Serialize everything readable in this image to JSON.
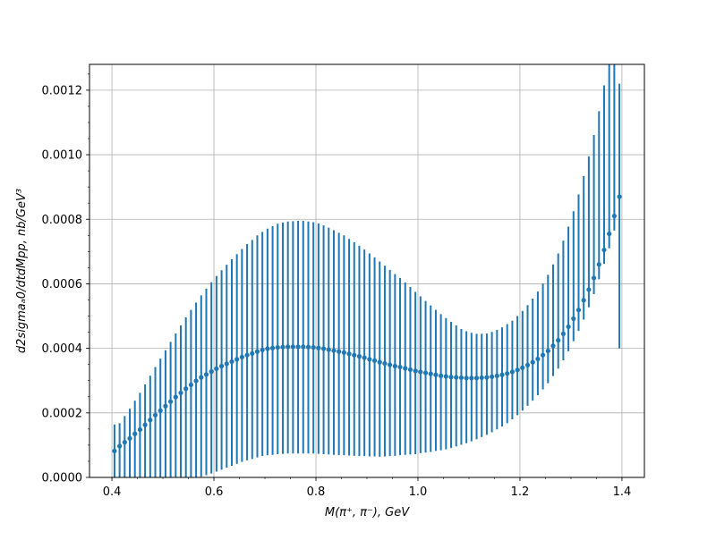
{
  "chart_data": {
    "type": "scatter",
    "title": "",
    "xlabel": "M(π⁺, π⁻), GeV",
    "ylabel": "d2sigmaₐ0/dtdMpp, nb/GeV³",
    "xlim": [
      0.356,
      1.444
    ],
    "ylim": [
      0.0,
      0.00128
    ],
    "xticks": [
      0.4,
      0.6,
      0.8,
      1.0,
      1.2,
      1.4
    ],
    "xtick_labels": [
      "0.4",
      "0.6",
      "0.8",
      "1.0",
      "1.2",
      "1.4"
    ],
    "yticks": [
      0.0,
      0.0002,
      0.0004,
      0.0006,
      0.0008,
      0.001,
      0.0012
    ],
    "ytick_labels": [
      "0.0000",
      "0.0002",
      "0.0004",
      "0.0006",
      "0.0008",
      "0.0010",
      "0.0012"
    ],
    "grid": true,
    "series_color": "#1f77b4",
    "series": [
      {
        "x": [
          0.405,
          0.415,
          0.425,
          0.435,
          0.445,
          0.455,
          0.465,
          0.475,
          0.485,
          0.495,
          0.505,
          0.515,
          0.525,
          0.535,
          0.545,
          0.555,
          0.565,
          0.575,
          0.585,
          0.595,
          0.605,
          0.615,
          0.625,
          0.635,
          0.645,
          0.655,
          0.665,
          0.675,
          0.685,
          0.695,
          0.705,
          0.715,
          0.725,
          0.735,
          0.745,
          0.755,
          0.765,
          0.775,
          0.785,
          0.795,
          0.805,
          0.815,
          0.825,
          0.835,
          0.845,
          0.855,
          0.865,
          0.875,
          0.885,
          0.895,
          0.905,
          0.915,
          0.925,
          0.935,
          0.945,
          0.955,
          0.965,
          0.975,
          0.985,
          0.995,
          1.005,
          1.015,
          1.025,
          1.035,
          1.045,
          1.055,
          1.065,
          1.075,
          1.085,
          1.095,
          1.105,
          1.115,
          1.125,
          1.135,
          1.145,
          1.155,
          1.165,
          1.175,
          1.185,
          1.195,
          1.205,
          1.215,
          1.225,
          1.235,
          1.245,
          1.255,
          1.265,
          1.275,
          1.285,
          1.295,
          1.305,
          1.315,
          1.325,
          1.335,
          1.345,
          1.355,
          1.365,
          1.375,
          1.385,
          1.395
        ],
        "y": [
          8.2e-05,
          9.7e-05,
          0.000109,
          0.000121,
          0.000135,
          0.000148,
          0.000163,
          0.000178,
          0.000193,
          0.000207,
          0.000221,
          0.000235,
          0.000249,
          0.000262,
          0.000275,
          0.000287,
          0.000299,
          0.00031,
          0.000319,
          0.000328,
          0.000337,
          0.000345,
          0.000352,
          0.000359,
          0.000366,
          0.000373,
          0.000379,
          0.000384,
          0.00039,
          0.000395,
          0.000399,
          0.000401,
          0.000403,
          0.000404,
          0.000405,
          0.000405,
          0.000405,
          0.000405,
          0.000404,
          0.000403,
          0.000401,
          0.000399,
          0.000396,
          0.000393,
          0.00039,
          0.000387,
          0.000383,
          0.000379,
          0.000375,
          0.000371,
          0.000366,
          0.000362,
          0.000357,
          0.000353,
          0.000349,
          0.000345,
          0.000342,
          0.000338,
          0.000334,
          0.00033,
          0.000327,
          0.000324,
          0.000321,
          0.000318,
          0.000315,
          0.000313,
          0.000311,
          0.00031,
          0.000309,
          0.000308,
          0.000308,
          0.000308,
          0.000309,
          0.00031,
          0.000312,
          0.000315,
          0.000318,
          0.000322,
          0.000327,
          0.000333,
          0.00034,
          0.000348,
          0.000357,
          0.000367,
          0.000379,
          0.000392,
          0.000408,
          0.000425,
          0.000445,
          0.000467,
          0.000492,
          0.000519,
          0.000549,
          0.000582,
          0.000618,
          0.00066,
          0.000705,
          0.000755,
          0.00081,
          0.00087
        ],
        "err_low": [
          8.2e-05,
          9.7e-05,
          0.000109,
          0.000121,
          0.000135,
          0.000148,
          0.000163,
          0.000178,
          0.000193,
          0.000207,
          0.000221,
          0.000235,
          0.000249,
          0.000262,
          0.000275,
          0.000287,
          0.000299,
          0.000308,
          0.000312,
          0.000316,
          0.000319,
          0.000321,
          0.000322,
          0.000323,
          0.000324,
          0.000325,
          0.000326,
          0.000327,
          0.000328,
          0.000329,
          0.00033,
          0.000331,
          0.000331,
          0.000331,
          0.000331,
          0.000331,
          0.000331,
          0.000331,
          0.00033,
          0.000329,
          0.000328,
          0.000327,
          0.000325,
          0.000323,
          0.000321,
          0.000318,
          0.000315,
          0.000312,
          0.000309,
          0.000305,
          0.000301,
          0.000297,
          0.000293,
          0.000288,
          0.000283,
          0.000278,
          0.000273,
          0.000268,
          0.000263,
          0.000258,
          0.000252,
          0.000247,
          0.000242,
          0.000236,
          0.000231,
          0.000226,
          0.00022,
          0.000214,
          0.000208,
          0.000202,
          0.000196,
          0.00019,
          0.000184,
          0.000178,
          0.000172,
          0.000166,
          0.00016,
          0.000154,
          0.000147,
          0.00014,
          0.000133,
          0.000126,
          0.000119,
          0.000112,
          0.000106,
          0.0001,
          9.4e-05,
          8.8e-05,
          8.2e-05,
          7.6e-05,
          7e-05,
          6.5e-05,
          6e-05,
          5.5e-05,
          5e-05,
          4.6e-05,
          4.3e-05,
          4.5e-05,
          4.5e-05,
          0.00047
        ],
        "err_high": [
          8.2e-05,
          7.1e-05,
          8.1e-05,
          9.2e-05,
          0.000103,
          0.000114,
          0.000125,
          0.000137,
          0.000149,
          0.000161,
          0.000173,
          0.000185,
          0.000197,
          0.000209,
          0.000221,
          0.000232,
          0.000243,
          0.000254,
          0.000266,
          0.000277,
          0.000287,
          0.000297,
          0.000307,
          0.000317,
          0.000326,
          0.000335,
          0.000344,
          0.000352,
          0.00036,
          0.000366,
          0.000372,
          0.000378,
          0.000383,
          0.000386,
          0.000388,
          0.000389,
          0.00039,
          0.00039,
          0.000389,
          0.000388,
          0.000386,
          0.000382,
          0.000378,
          0.000373,
          0.000368,
          0.000363,
          0.000356,
          0.00035,
          0.000343,
          0.000335,
          0.000328,
          0.00032,
          0.000312,
          0.000303,
          0.000294,
          0.000285,
          0.000276,
          0.000266,
          0.000256,
          0.000245,
          0.000234,
          0.000223,
          0.000212,
          0.000201,
          0.000191,
          0.000181,
          0.000171,
          0.000161,
          0.000151,
          0.000145,
          0.00014,
          0.000137,
          0.000136,
          0.000136,
          0.000139,
          0.000142,
          0.000147,
          0.000153,
          0.000159,
          0.000167,
          0.000176,
          0.000186,
          0.000197,
          0.000209,
          0.000222,
          0.000236,
          0.000252,
          0.000269,
          0.000289,
          0.00031,
          0.000333,
          0.000358,
          0.000385,
          0.000413,
          0.000443,
          0.000475,
          0.00051,
          0.000545,
          0.000585,
          0.00035
        ]
      }
    ]
  }
}
